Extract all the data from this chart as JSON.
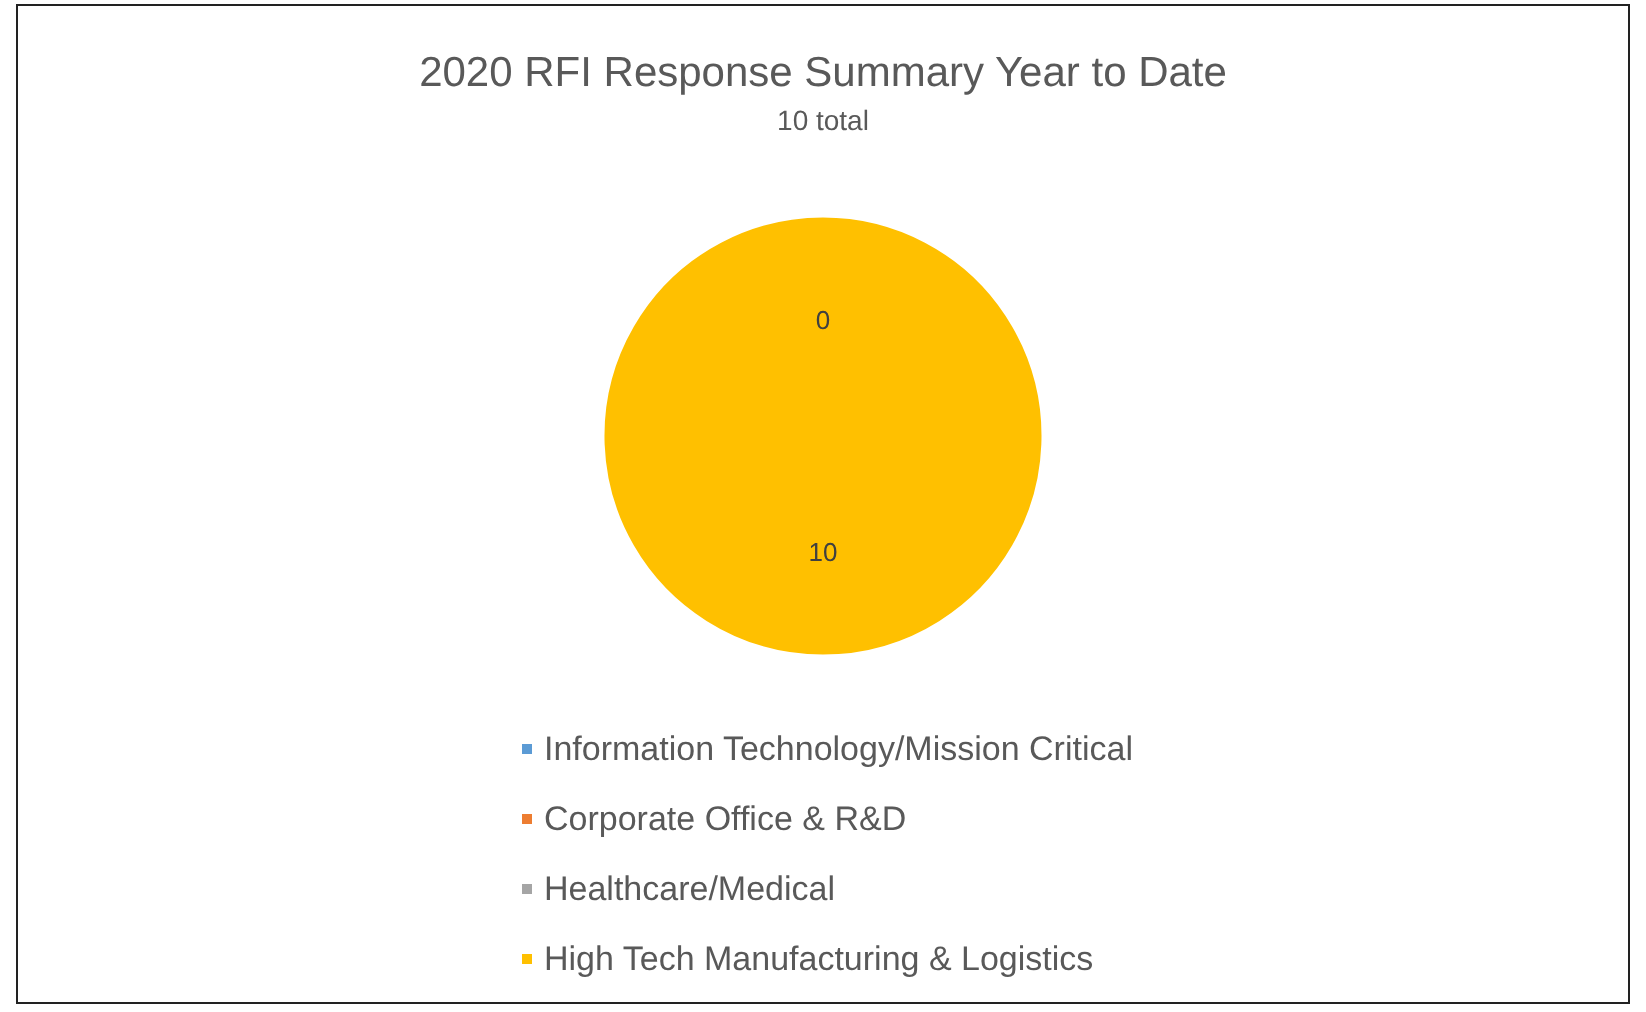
{
  "chart_data": {
    "type": "pie",
    "title": "2020 RFI Response Summary Year to Date",
    "subtitle": "10 total",
    "categories": [
      "Information Technology/Mission Critical",
      "Corporate Office & R&D",
      "Healthcare/Medical",
      "High Tech Manufacturing & Logistics"
    ],
    "values": [
      0,
      0,
      0,
      10
    ],
    "colors": [
      "#5b9bd5",
      "#ed7d31",
      "#a5a5a5",
      "#ffc000"
    ],
    "value_labels": [
      null,
      null,
      "0",
      "10"
    ],
    "legend": "bottom"
  }
}
